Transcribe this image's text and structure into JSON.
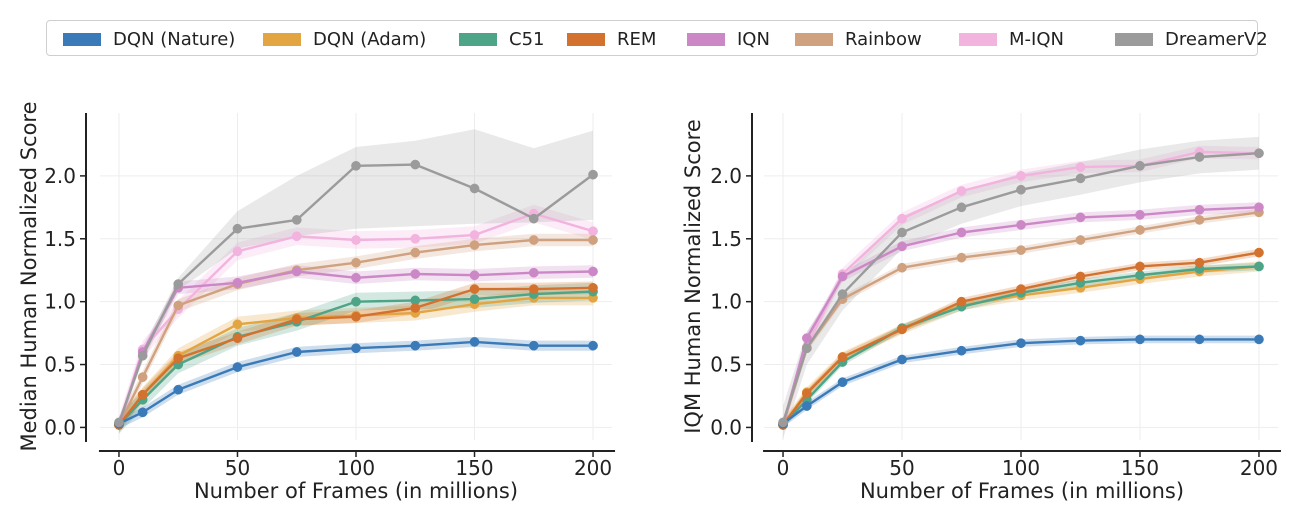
{
  "legend": [
    {
      "name": "DQN (Nature)",
      "color": "#3a7ab8"
    },
    {
      "name": "DQN (Adam)",
      "color": "#e3a541"
    },
    {
      "name": "C51",
      "color": "#4da487"
    },
    {
      "name": "REM",
      "color": "#d2722e"
    },
    {
      "name": "IQN",
      "color": "#cc88c6"
    },
    {
      "name": "Rainbow",
      "color": "#cfa17e"
    },
    {
      "name": "M-IQN",
      "color": "#f2b3df"
    },
    {
      "name": "DreamerV2",
      "color": "#9b9b9b"
    }
  ],
  "chart_data": [
    {
      "type": "line",
      "xlabel": "Number of Frames (in millions)",
      "ylabel": "Median Human Normalized Score",
      "xlim": [
        -8,
        208
      ],
      "ylim": [
        -0.1,
        2.5
      ],
      "xticks": [
        0,
        50,
        100,
        150,
        200
      ],
      "yticks": [
        0.0,
        0.5,
        1.0,
        1.5,
        2.0
      ],
      "series": [
        {
          "name": "DQN (Nature)",
          "x": [
            0,
            10,
            25,
            50,
            75,
            100,
            125,
            150,
            175,
            200
          ],
          "y": [
            0.03,
            0.12,
            0.3,
            0.48,
            0.6,
            0.63,
            0.65,
            0.68,
            0.65,
            0.65
          ],
          "band": 0.04
        },
        {
          "name": "DQN (Adam)",
          "x": [
            0,
            10,
            25,
            50,
            75,
            100,
            125,
            150,
            175,
            200
          ],
          "y": [
            0.02,
            0.26,
            0.57,
            0.82,
            0.87,
            0.89,
            0.91,
            0.98,
            1.03,
            1.03
          ],
          "band": 0.06
        },
        {
          "name": "C51",
          "x": [
            0,
            10,
            25,
            50,
            75,
            100,
            125,
            150,
            175,
            200
          ],
          "y": [
            0.02,
            0.22,
            0.5,
            0.72,
            0.84,
            1.0,
            1.01,
            1.02,
            1.06,
            1.08
          ],
          "band": 0.07
        },
        {
          "name": "REM",
          "x": [
            0,
            10,
            25,
            50,
            75,
            100,
            125,
            150,
            175,
            200
          ],
          "y": [
            0.02,
            0.26,
            0.55,
            0.71,
            0.86,
            0.88,
            0.95,
            1.1,
            1.1,
            1.11
          ],
          "band": 0.05
        },
        {
          "name": "IQN",
          "x": [
            0,
            10,
            25,
            50,
            75,
            100,
            125,
            150,
            175,
            200
          ],
          "y": [
            0.02,
            0.6,
            1.11,
            1.15,
            1.24,
            1.19,
            1.22,
            1.21,
            1.23,
            1.24
          ],
          "band": 0.05
        },
        {
          "name": "Rainbow",
          "x": [
            0,
            10,
            25,
            50,
            75,
            100,
            125,
            150,
            175,
            200
          ],
          "y": [
            0.02,
            0.4,
            0.97,
            1.14,
            1.25,
            1.31,
            1.39,
            1.45,
            1.49,
            1.49
          ],
          "band": 0.05
        },
        {
          "name": "M-IQN",
          "x": [
            0,
            10,
            25,
            50,
            75,
            100,
            125,
            150,
            175,
            200
          ],
          "y": [
            0.02,
            0.62,
            0.94,
            1.4,
            1.52,
            1.49,
            1.5,
            1.53,
            1.7,
            1.56
          ],
          "band": 0.07
        },
        {
          "name": "DreamerV2",
          "x": [
            0,
            10,
            25,
            50,
            75,
            100,
            125,
            150,
            175,
            200
          ],
          "y": [
            0.04,
            0.57,
            1.14,
            1.58,
            1.65,
            2.08,
            2.09,
            1.9,
            1.66,
            2.01
          ],
          "lower": [
            0.04,
            0.52,
            1.09,
            1.42,
            1.52,
            1.58,
            1.6,
            1.62,
            1.63,
            1.65
          ],
          "upper": [
            0.04,
            0.62,
            1.19,
            1.72,
            2.0,
            2.23,
            2.28,
            2.37,
            2.22,
            2.36
          ]
        }
      ]
    },
    {
      "type": "line",
      "xlabel": "Number of Frames (in millions)",
      "ylabel": "IQM Human Normalized Score",
      "xlim": [
        -8,
        208
      ],
      "ylim": [
        -0.1,
        2.5
      ],
      "xticks": [
        0,
        50,
        100,
        150,
        200
      ],
      "yticks": [
        0.0,
        0.5,
        1.0,
        1.5,
        2.0
      ],
      "series": [
        {
          "name": "DQN (Nature)",
          "x": [
            0,
            10,
            25,
            50,
            75,
            100,
            125,
            150,
            175,
            200
          ],
          "y": [
            0.03,
            0.17,
            0.36,
            0.54,
            0.61,
            0.67,
            0.69,
            0.7,
            0.7,
            0.7
          ],
          "band": 0.03
        },
        {
          "name": "DQN (Adam)",
          "x": [
            0,
            10,
            25,
            50,
            75,
            100,
            125,
            150,
            175,
            200
          ],
          "y": [
            0.02,
            0.28,
            0.56,
            0.78,
            0.97,
            1.05,
            1.11,
            1.18,
            1.24,
            1.28
          ],
          "band": 0.04
        },
        {
          "name": "C51",
          "x": [
            0,
            10,
            25,
            50,
            75,
            100,
            125,
            150,
            175,
            200
          ],
          "y": [
            0.02,
            0.22,
            0.52,
            0.79,
            0.96,
            1.07,
            1.15,
            1.21,
            1.26,
            1.28
          ],
          "band": 0.03
        },
        {
          "name": "REM",
          "x": [
            0,
            10,
            25,
            50,
            75,
            100,
            125,
            150,
            175,
            200
          ],
          "y": [
            0.02,
            0.27,
            0.56,
            0.78,
            1.0,
            1.1,
            1.2,
            1.28,
            1.31,
            1.39
          ],
          "band": 0.03
        },
        {
          "name": "IQN",
          "x": [
            0,
            10,
            25,
            50,
            75,
            100,
            125,
            150,
            175,
            200
          ],
          "y": [
            0.02,
            0.71,
            1.2,
            1.44,
            1.55,
            1.61,
            1.67,
            1.69,
            1.73,
            1.75
          ],
          "band": 0.04
        },
        {
          "name": "Rainbow",
          "x": [
            0,
            10,
            25,
            50,
            75,
            100,
            125,
            150,
            175,
            200
          ],
          "y": [
            0.02,
            0.63,
            1.02,
            1.27,
            1.35,
            1.41,
            1.49,
            1.57,
            1.65,
            1.71
          ],
          "band": 0.03
        },
        {
          "name": "M-IQN",
          "x": [
            0,
            10,
            25,
            50,
            75,
            100,
            125,
            150,
            175,
            200
          ],
          "y": [
            0.02,
            0.64,
            1.22,
            1.66,
            1.88,
            2.0,
            2.07,
            2.08,
            2.19,
            2.18
          ],
          "band": 0.05
        },
        {
          "name": "DreamerV2",
          "x": [
            0,
            10,
            25,
            50,
            75,
            100,
            125,
            150,
            175,
            200
          ],
          "y": [
            0.04,
            0.63,
            1.06,
            1.55,
            1.75,
            1.89,
            1.98,
            2.08,
            2.15,
            2.18
          ],
          "band": 0.13
        }
      ]
    }
  ]
}
